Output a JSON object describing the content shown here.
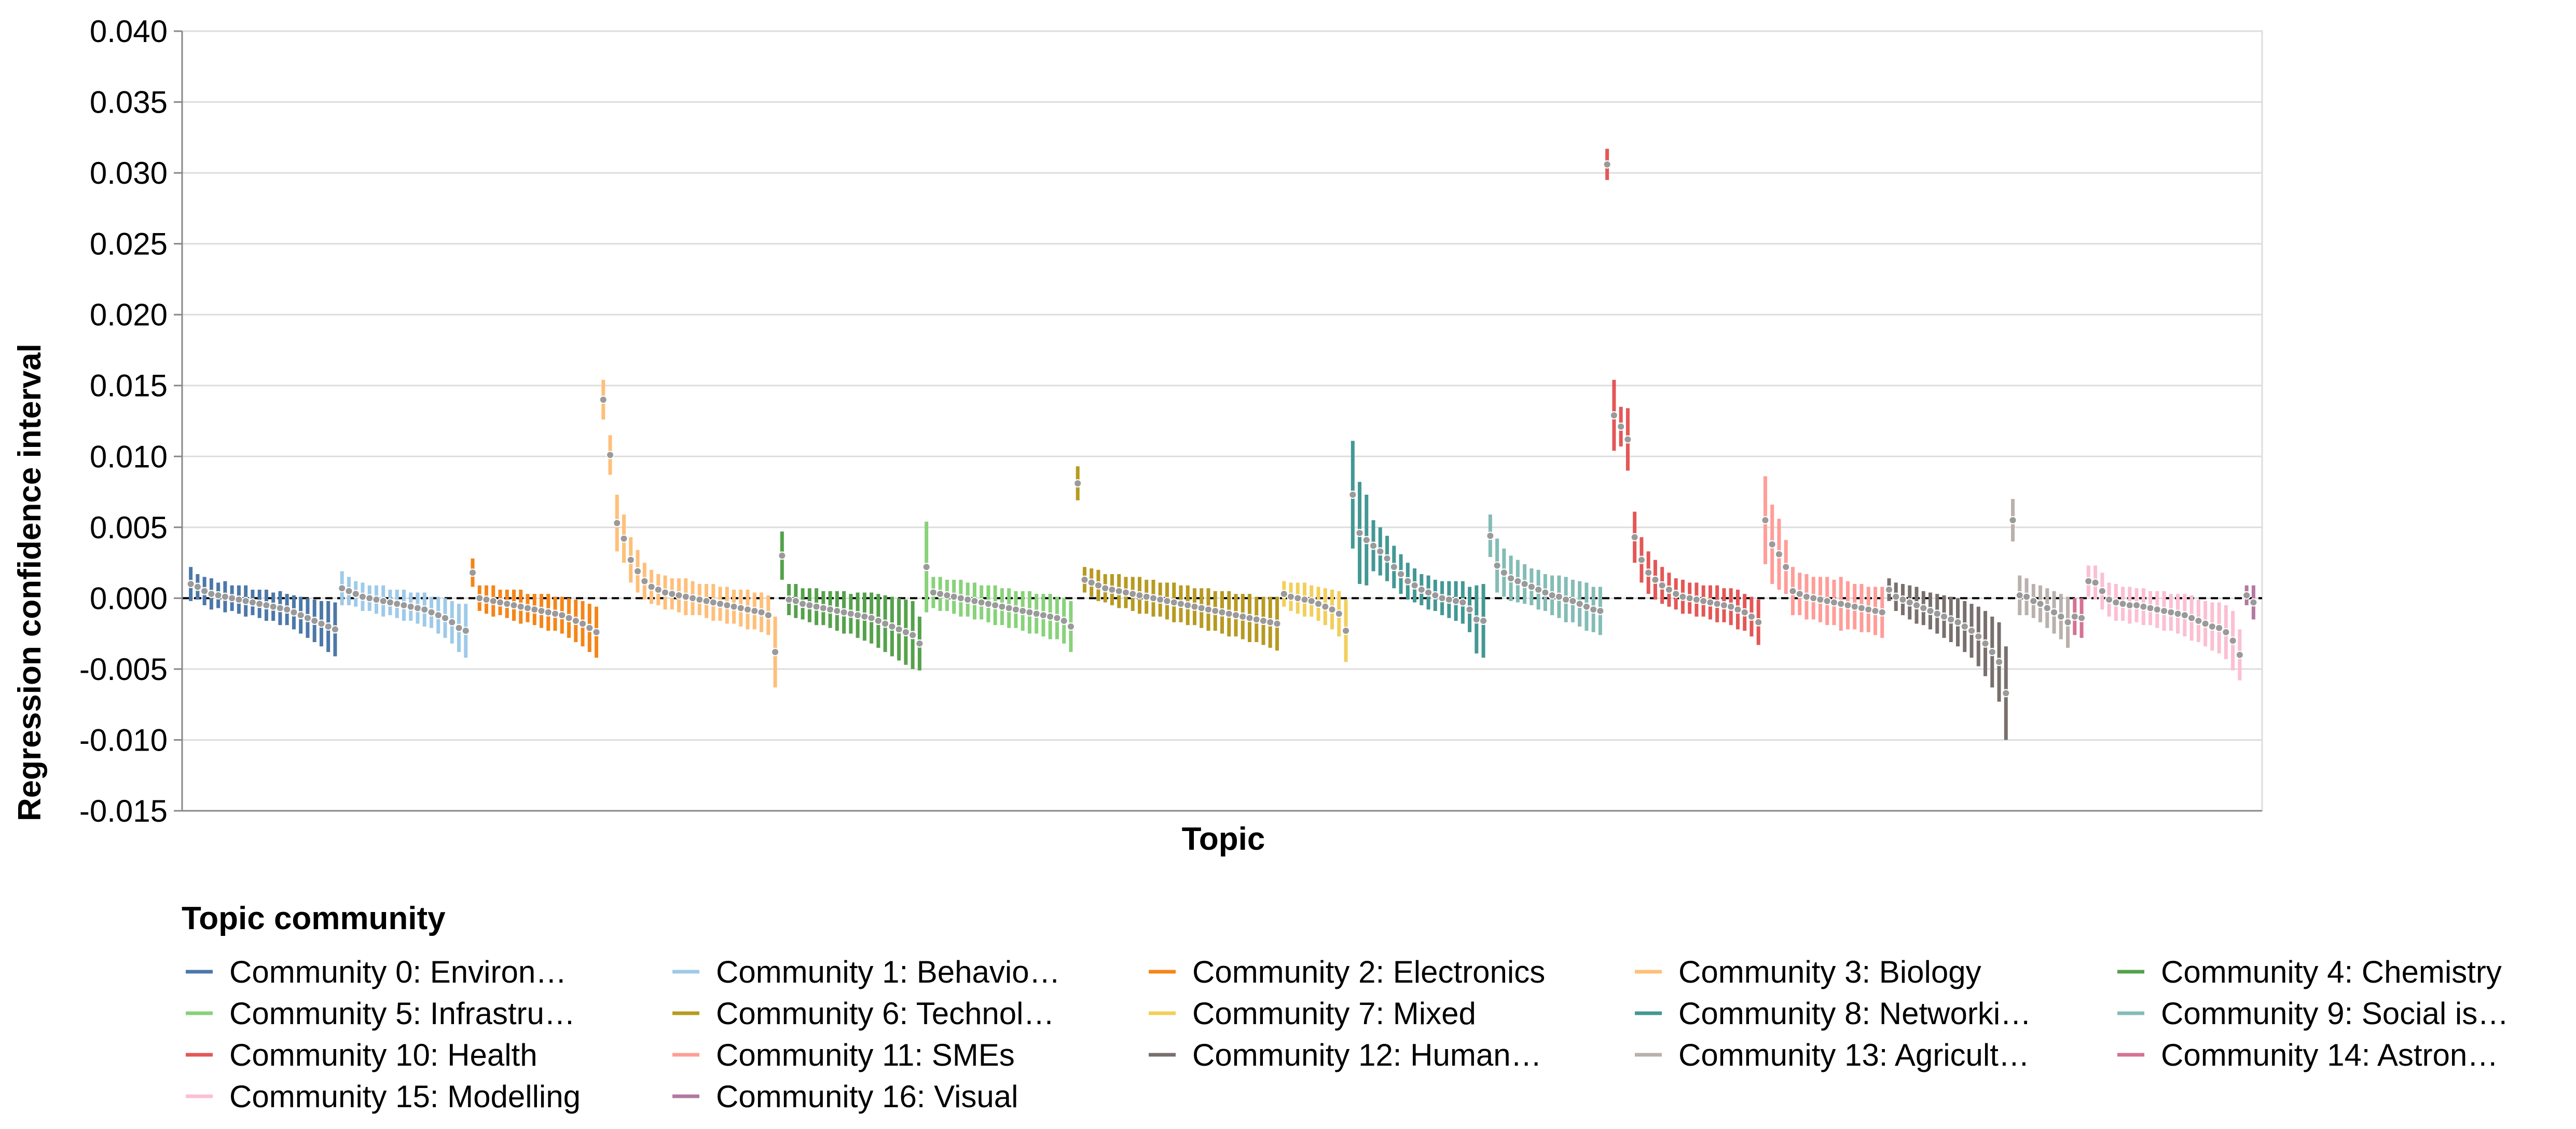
{
  "chart_data": {
    "type": "scatter",
    "mark": "point with vertical confidence-interval bars",
    "xlabel": "Topic",
    "ylabel": "Regression confidence interval",
    "ylim": [
      -0.015,
      0.04
    ],
    "yticks": [
      "0.040",
      "0.035",
      "0.030",
      "0.025",
      "0.020",
      "0.015",
      "0.010",
      "0.005",
      "0.000",
      "-0.005",
      "-0.010",
      "-0.015"
    ],
    "ytick_values": [
      0.04,
      0.035,
      0.03,
      0.025,
      0.02,
      0.015,
      0.01,
      0.005,
      0.0,
      -0.005,
      -0.01,
      -0.015
    ],
    "reference_line": 0.0,
    "grid": "horizontal",
    "legend_title": "Topic community",
    "legend_position": "bottom",
    "series": [
      {
        "name": "Community 0: Environ…",
        "color": "#4c78a8",
        "estimates": [
          0.001,
          0.0008,
          0.0005,
          0.0003,
          0.0002,
          0.0001,
          0.0,
          -0.0001,
          -0.0002,
          -0.0003,
          -0.0004,
          -0.0005,
          -0.0006,
          -0.0007,
          -0.0008,
          -0.001,
          -0.0012,
          -0.0014,
          -0.0016,
          -0.0018,
          -0.002,
          -0.0022
        ],
        "errors": [
          0.0012,
          0.0009,
          0.001,
          0.0011,
          0.0009,
          0.0011,
          0.0009,
          0.001,
          0.0011,
          0.0009,
          0.001,
          0.0011,
          0.001,
          0.0012,
          0.0011,
          0.0012,
          0.0013,
          0.0014,
          0.0015,
          0.0016,
          0.0018,
          0.0019
        ]
      },
      {
        "name": "Community 1: Behavio…",
        "color": "#9ecae9",
        "estimates": [
          0.0007,
          0.0005,
          0.0003,
          0.0001,
          0.0,
          -0.0001,
          -0.0002,
          -0.0003,
          -0.0004,
          -0.0005,
          -0.0006,
          -0.0007,
          -0.0008,
          -0.001,
          -0.0012,
          -0.0014,
          -0.0017,
          -0.0021,
          -0.0023
        ],
        "errors": [
          0.0012,
          0.001,
          0.0009,
          0.001,
          0.0009,
          0.001,
          0.0011,
          0.0009,
          0.001,
          0.0011,
          0.001,
          0.0011,
          0.0012,
          0.0011,
          0.0013,
          0.0014,
          0.0015,
          0.0017,
          0.0019
        ]
      },
      {
        "name": "Community 2: Electronics",
        "color": "#f58518",
        "estimates": [
          0.0018,
          0.0,
          -0.0001,
          -0.0002,
          -0.0003,
          -0.0004,
          -0.0005,
          -0.0006,
          -0.0007,
          -0.0008,
          -0.0009,
          -0.001,
          -0.0011,
          -0.0012,
          -0.0014,
          -0.0016,
          -0.0018,
          -0.0021,
          -0.0024
        ],
        "errors": [
          0.001,
          0.0009,
          0.001,
          0.0011,
          0.0009,
          0.001,
          0.0011,
          0.0012,
          0.001,
          0.0011,
          0.0012,
          0.0013,
          0.0012,
          0.0013,
          0.0014,
          0.0015,
          0.0016,
          0.0017,
          0.0018
        ]
      },
      {
        "name": "Community 3: Biology",
        "color": "#ffbf79",
        "estimates": [
          0.014,
          0.0101,
          0.0053,
          0.0042,
          0.0027,
          0.0019,
          0.0012,
          0.0008,
          0.0006,
          0.0004,
          0.0003,
          0.0002,
          0.0001,
          0.0,
          -0.0001,
          -0.0002,
          -0.0003,
          -0.0004,
          -0.0005,
          -0.0006,
          -0.0007,
          -0.0008,
          -0.0009,
          -0.001,
          -0.0012,
          -0.0038
        ],
        "errors": [
          0.0014,
          0.0014,
          0.002,
          0.0017,
          0.0016,
          0.0015,
          0.0013,
          0.0012,
          0.0011,
          0.0012,
          0.0011,
          0.0012,
          0.0013,
          0.0012,
          0.0011,
          0.0012,
          0.0013,
          0.0012,
          0.0013,
          0.0012,
          0.0013,
          0.0014,
          0.0013,
          0.0014,
          0.0014,
          0.0025
        ]
      },
      {
        "name": "Community 4: Chemistry",
        "color": "#54a24b",
        "estimates": [
          0.003,
          -0.0001,
          -0.0002,
          -0.0004,
          -0.0005,
          -0.0006,
          -0.0007,
          -0.0008,
          -0.0009,
          -0.001,
          -0.0011,
          -0.0012,
          -0.0013,
          -0.0014,
          -0.0016,
          -0.0018,
          -0.002,
          -0.0022,
          -0.0024,
          -0.0026,
          -0.0032
        ],
        "errors": [
          0.0017,
          0.0011,
          0.0012,
          0.0011,
          0.0012,
          0.0013,
          0.0012,
          0.0013,
          0.0014,
          0.0015,
          0.0014,
          0.0016,
          0.0017,
          0.0018,
          0.0019,
          0.002,
          0.0021,
          0.0022,
          0.0023,
          0.0024,
          0.0019
        ]
      },
      {
        "name": "Community 5: Infrastru…",
        "color": "#88d27a",
        "estimates": [
          0.0022,
          0.0004,
          0.0003,
          0.0002,
          0.0001,
          0.0,
          -0.0001,
          -0.0002,
          -0.0003,
          -0.0004,
          -0.0005,
          -0.0006,
          -0.0007,
          -0.0008,
          -0.0009,
          -0.001,
          -0.0011,
          -0.0012,
          -0.0013,
          -0.0014,
          -0.0016,
          -0.002
        ],
        "errors": [
          0.0032,
          0.0011,
          0.0012,
          0.0011,
          0.0012,
          0.0013,
          0.0012,
          0.0013,
          0.0012,
          0.0013,
          0.0014,
          0.0013,
          0.0014,
          0.0013,
          0.0014,
          0.0015,
          0.0014,
          0.0015,
          0.0016,
          0.0015,
          0.0016,
          0.0018
        ]
      },
      {
        "name": "Community 6: Technol…",
        "color": "#b79a20",
        "estimates": [
          0.0081,
          0.0013,
          0.0011,
          0.0009,
          0.0007,
          0.0006,
          0.0005,
          0.0004,
          0.0003,
          0.0002,
          0.0001,
          0.0,
          -0.0001,
          -0.0002,
          -0.0003,
          -0.0004,
          -0.0005,
          -0.0006,
          -0.0007,
          -0.0008,
          -0.0009,
          -0.001,
          -0.0011,
          -0.0012,
          -0.0013,
          -0.0014,
          -0.0015,
          -0.0016,
          -0.0017,
          -0.0018
        ],
        "errors": [
          0.0012,
          0.0009,
          0.001,
          0.0011,
          0.001,
          0.0011,
          0.0012,
          0.0011,
          0.0012,
          0.0013,
          0.0012,
          0.0013,
          0.0012,
          0.0013,
          0.0014,
          0.0013,
          0.0014,
          0.0013,
          0.0014,
          0.0015,
          0.0014,
          0.0015,
          0.0016,
          0.0015,
          0.0016,
          0.0017,
          0.0016,
          0.0017,
          0.0018,
          0.0019
        ]
      },
      {
        "name": "Community 7: Mixed",
        "color": "#f2cf5b",
        "estimates": [
          0.0003,
          0.0001,
          0.0,
          -0.0001,
          -0.0002,
          -0.0004,
          -0.0006,
          -0.0008,
          -0.0011,
          -0.0023
        ],
        "errors": [
          0.0009,
          0.001,
          0.0011,
          0.0012,
          0.0011,
          0.0012,
          0.0013,
          0.0014,
          0.0016,
          0.0022
        ]
      },
      {
        "name": "Community 8: Networki…",
        "color": "#439894",
        "estimates": [
          0.0073,
          0.0046,
          0.0041,
          0.0037,
          0.0033,
          0.0028,
          0.0022,
          0.0017,
          0.0012,
          0.0009,
          0.0006,
          0.0004,
          0.0002,
          0.0,
          -0.0001,
          -0.0002,
          -0.0003,
          -0.0008,
          -0.0015,
          -0.0016
        ],
        "errors": [
          0.0038,
          0.0036,
          0.0032,
          0.0018,
          0.0017,
          0.0016,
          0.0015,
          0.0014,
          0.0013,
          0.0012,
          0.0011,
          0.0012,
          0.0011,
          0.0012,
          0.0013,
          0.0014,
          0.0015,
          0.0016,
          0.0024,
          0.0026
        ]
      },
      {
        "name": "Community 9: Social is…",
        "color": "#83bcb6",
        "estimates": [
          0.0044,
          0.0023,
          0.0018,
          0.0014,
          0.0012,
          0.001,
          0.0008,
          0.0006,
          0.0004,
          0.0002,
          0.0001,
          -0.0001,
          -0.0002,
          -0.0004,
          -0.0006,
          -0.0008,
          -0.0009
        ],
        "errors": [
          0.0015,
          0.0019,
          0.0017,
          0.0016,
          0.0015,
          0.0014,
          0.0013,
          0.0014,
          0.0013,
          0.0014,
          0.0015,
          0.0016,
          0.0015,
          0.0016,
          0.0017,
          0.0016,
          0.0017
        ]
      },
      {
        "name": "Community 10: Health",
        "color": "#e45756",
        "estimates": [
          0.0306,
          0.0129,
          0.0121,
          0.0112,
          0.0043,
          0.0027,
          0.0018,
          0.0013,
          0.0009,
          0.0006,
          0.0003,
          0.0001,
          0.0,
          -0.0001,
          -0.0002,
          -0.0003,
          -0.0004,
          -0.0005,
          -0.0006,
          -0.0008,
          -0.001,
          -0.0013,
          -0.0017
        ],
        "errors": [
          0.0011,
          0.0025,
          0.0014,
          0.0022,
          0.0018,
          0.0016,
          0.0015,
          0.0014,
          0.0013,
          0.0012,
          0.0011,
          0.0012,
          0.0011,
          0.0012,
          0.0011,
          0.0012,
          0.0013,
          0.0012,
          0.0013,
          0.0014,
          0.0013,
          0.0014,
          0.0016
        ]
      },
      {
        "name": "Community 11: SMEs",
        "color": "#ff9d98",
        "estimates": [
          0.0055,
          0.0038,
          0.0031,
          0.0022,
          0.0005,
          0.0003,
          0.0001,
          0.0,
          -0.0001,
          -0.0002,
          -0.0003,
          -0.0004,
          -0.0005,
          -0.0006,
          -0.0007,
          -0.0008,
          -0.0009,
          -0.001
        ],
        "errors": [
          0.0031,
          0.0028,
          0.0025,
          0.0019,
          0.0017,
          0.0015,
          0.0016,
          0.0015,
          0.0016,
          0.0017,
          0.0016,
          0.0019,
          0.0017,
          0.0016,
          0.0017,
          0.0016,
          0.0017,
          0.0018
        ]
      },
      {
        "name": "Community 12: Human…",
        "color": "#79706e",
        "estimates": [
          0.0006,
          0.0001,
          -0.0001,
          -0.0003,
          -0.0005,
          -0.0007,
          -0.0009,
          -0.0011,
          -0.0013,
          -0.0015,
          -0.0017,
          -0.002,
          -0.0023,
          -0.0027,
          -0.0032,
          -0.0038,
          -0.0045,
          -0.0067
        ],
        "errors": [
          0.0008,
          0.001,
          0.0011,
          0.0012,
          0.0013,
          0.0012,
          0.0013,
          0.0014,
          0.0015,
          0.0016,
          0.0017,
          0.0018,
          0.0019,
          0.0021,
          0.0023,
          0.0025,
          0.0028,
          0.0033
        ]
      },
      {
        "name": "Community 13: Agricult…",
        "color": "#bab0ac",
        "estimates": [
          0.0055,
          0.0002,
          0.0001,
          -0.0002,
          -0.0004,
          -0.0007,
          -0.001,
          -0.0013,
          -0.0017
        ],
        "errors": [
          0.0015,
          0.0014,
          0.0013,
          0.0012,
          0.0013,
          0.0014,
          0.0015,
          0.0016,
          0.0018
        ]
      },
      {
        "name": "Community 14: Astron…",
        "color": "#d67195",
        "estimates": [
          -0.0013,
          -0.0014
        ],
        "errors": [
          0.0013,
          0.0014
        ]
      },
      {
        "name": "Community 15: Modelling",
        "color": "#fcbfd2",
        "estimates": [
          0.0012,
          0.0011,
          0.0005,
          -0.0001,
          -0.0003,
          -0.0004,
          -0.0005,
          -0.0005,
          -0.0006,
          -0.0007,
          -0.0008,
          -0.0009,
          -0.001,
          -0.0011,
          -0.0012,
          -0.0014,
          -0.0016,
          -0.0018,
          -0.002,
          -0.0021,
          -0.0024,
          -0.003,
          -0.004
        ],
        "errors": [
          0.0011,
          0.0012,
          0.0013,
          0.0012,
          0.0013,
          0.0012,
          0.0013,
          0.0012,
          0.0013,
          0.0012,
          0.0013,
          0.0014,
          0.0013,
          0.0014,
          0.0015,
          0.0016,
          0.0015,
          0.0016,
          0.0017,
          0.0018,
          0.0019,
          0.0021,
          0.0018
        ]
      },
      {
        "name": "Community 16: Visual",
        "color": "#b279a2",
        "estimates": [
          0.0002,
          -0.0003
        ],
        "errors": [
          0.0007,
          0.0012
        ]
      }
    ]
  }
}
